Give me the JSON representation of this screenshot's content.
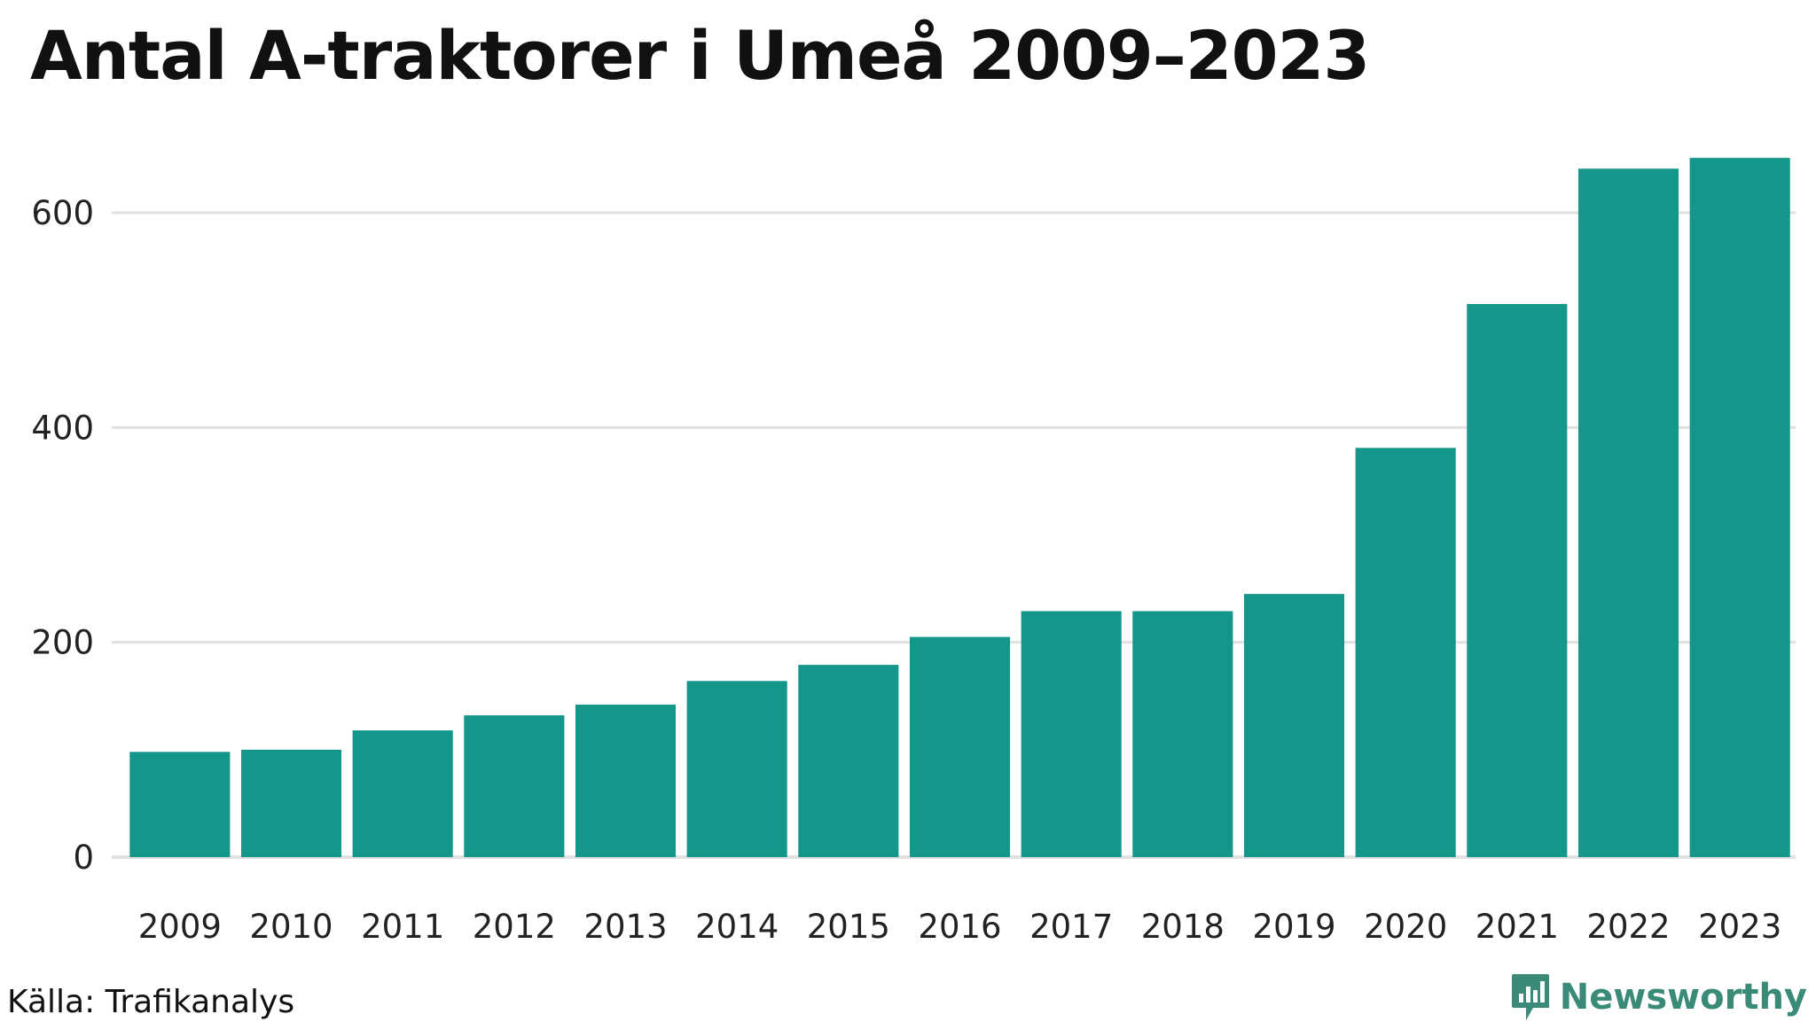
{
  "chart_data": {
    "type": "bar",
    "title": "Antal A-traktorer i Umeå 2009–2023",
    "xlabel": "",
    "ylabel": "",
    "categories": [
      "2009",
      "2010",
      "2011",
      "2012",
      "2013",
      "2014",
      "2015",
      "2016",
      "2017",
      "2018",
      "2019",
      "2020",
      "2021",
      "2022",
      "2023"
    ],
    "values": [
      98,
      100,
      118,
      132,
      142,
      164,
      179,
      205,
      229,
      229,
      245,
      381,
      515,
      641,
      651
    ],
    "ylim": [
      0,
      680
    ],
    "yticks": [
      0,
      200,
      400,
      600
    ],
    "grid": true,
    "bar_color": "#14968a",
    "grid_color": "#e1e1e1"
  },
  "source": "Källa: Trafikanalys",
  "brand": {
    "name": "Newsworthy",
    "icon": "newsworthy-logo-icon",
    "color": "#3a8a78"
  }
}
